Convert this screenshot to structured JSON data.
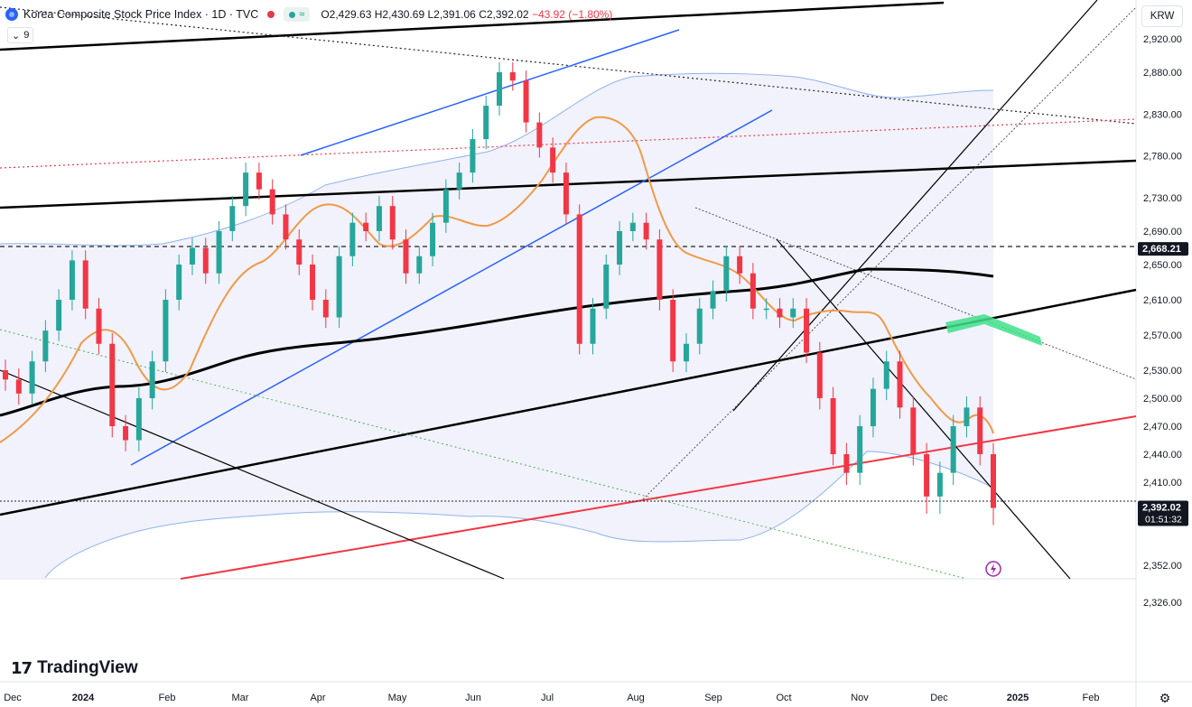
{
  "header": {
    "symbol_title": "Korea Composite Stock Price Index · 1D · TVC",
    "ohlc_o": "O2,429.63",
    "ohlc_h": "H2,430.69",
    "ohlc_l": "L2,391.06",
    "ohlc_c": "C2,392.02",
    "ohlc_change": "−43.92 (−1.80%)",
    "indicator_label": "9",
    "currency": "KRW"
  },
  "brand": {
    "name": "TradingView"
  },
  "colors": {
    "up": "#26a69a",
    "down": "#f23645",
    "bb": "#8fb3ea",
    "ma_fast": "#f09a46",
    "ma_slow": "#000000",
    "accent": "#2962ff"
  },
  "chart_data": {
    "type": "candlestick",
    "title": "Korea Composite Stock Price Index · 1D · TVC",
    "ylabel": "KRW",
    "ylim": [
      2300,
      2950
    ],
    "y_ticks": [
      2326,
      2352,
      2410,
      2440,
      2470,
      2500,
      2530,
      2570,
      2610,
      2650,
      2690,
      2730,
      2780,
      2830,
      2880,
      2920
    ],
    "x_ticks": [
      "Dec",
      "2024",
      "Feb",
      "Mar",
      "Apr",
      "May",
      "Jun",
      "Jul",
      "Aug",
      "Sep",
      "Oct",
      "Nov",
      "Dec",
      "2025",
      "Feb"
    ],
    "price_labels": [
      {
        "value": 2668.21,
        "label": "2,668.21",
        "style": "dark"
      },
      {
        "value": 2392.02,
        "label": "2,392.02",
        "style": "dark",
        "countdown": "01:51:32"
      }
    ],
    "last_close": 2392.02,
    "horizontal_level": 2668.21,
    "sample_closes": [
      2520,
      2505,
      2540,
      2575,
      2610,
      2655,
      2600,
      2560,
      2470,
      2455,
      2500,
      2540,
      2610,
      2650,
      2670,
      2640,
      2690,
      2720,
      2760,
      2740,
      2710,
      2680,
      2650,
      2610,
      2590,
      2660,
      2700,
      2690,
      2720,
      2680,
      2640,
      2660,
      2700,
      2740,
      2760,
      2800,
      2840,
      2880,
      2870,
      2820,
      2790,
      2760,
      2710,
      2560,
      2600,
      2650,
      2690,
      2700,
      2680,
      2610,
      2540,
      2560,
      2600,
      2620,
      2660,
      2640,
      2600,
      2600,
      2590,
      2600,
      2550,
      2500,
      2440,
      2420,
      2470,
      2510,
      2540,
      2490,
      2440,
      2400,
      2420,
      2470,
      2490,
      2440,
      2392
    ]
  }
}
